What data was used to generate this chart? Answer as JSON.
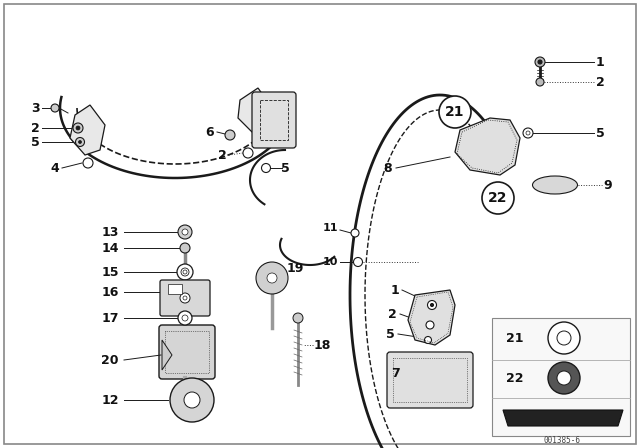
{
  "bg_color": "#ffffff",
  "border_color": "#aaaaaa",
  "line_color": "#1a1a1a",
  "text_color": "#111111",
  "diagram_number": "001385-6",
  "fig_width": 6.4,
  "fig_height": 4.48,
  "dpi": 100
}
